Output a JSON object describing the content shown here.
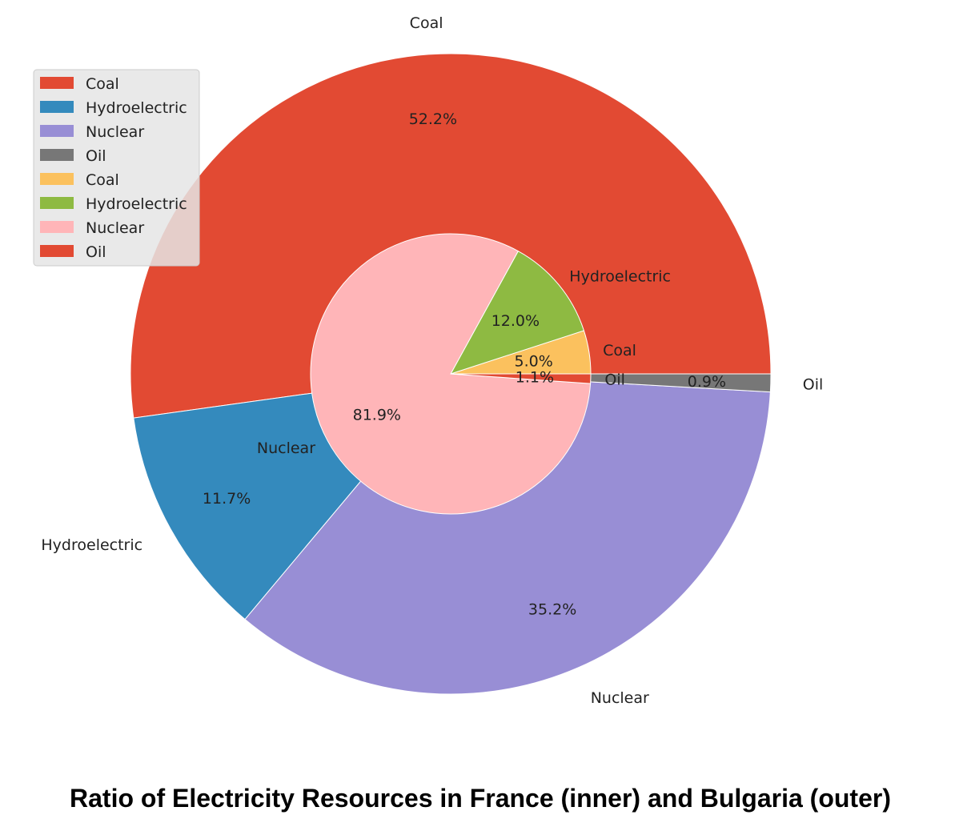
{
  "chart_data": {
    "type": "pie",
    "variant": "nested",
    "title": "Ratio of Electricity Resources in France (inner) and Bulgaria (outer)",
    "outer": {
      "categories": [
        "Coal",
        "Hydroelectric",
        "Nuclear",
        "Oil"
      ],
      "values": [
        52.2,
        11.7,
        35.2,
        0.9
      ],
      "labels": [
        "52.2%",
        "11.7%",
        "35.2%",
        "0.9%"
      ],
      "colors": [
        "#e24a33",
        "#348abd",
        "#988ed5",
        "#777777"
      ]
    },
    "inner": {
      "categories": [
        "Coal",
        "Hydroelectric",
        "Nuclear",
        "Oil"
      ],
      "values": [
        5.0,
        12.0,
        81.9,
        1.1
      ],
      "labels": [
        "5.0%",
        "12.0%",
        "81.9%",
        "1.1%"
      ],
      "colors": [
        "#fbc15e",
        "#8eba42",
        "#ffb5b8",
        "#e24a33"
      ]
    },
    "legend": {
      "position": "upper-left",
      "entries": [
        {
          "label": "Coal",
          "color": "#e24a33"
        },
        {
          "label": "Hydroelectric",
          "color": "#348abd"
        },
        {
          "label": "Nuclear",
          "color": "#988ed5"
        },
        {
          "label": "Oil",
          "color": "#777777"
        },
        {
          "label": "Coal",
          "color": "#fbc15e"
        },
        {
          "label": "Hydroelectric",
          "color": "#8eba42"
        },
        {
          "label": "Nuclear",
          "color": "#ffb5b8"
        },
        {
          "label": "Oil",
          "color": "#e24a33"
        }
      ]
    }
  }
}
